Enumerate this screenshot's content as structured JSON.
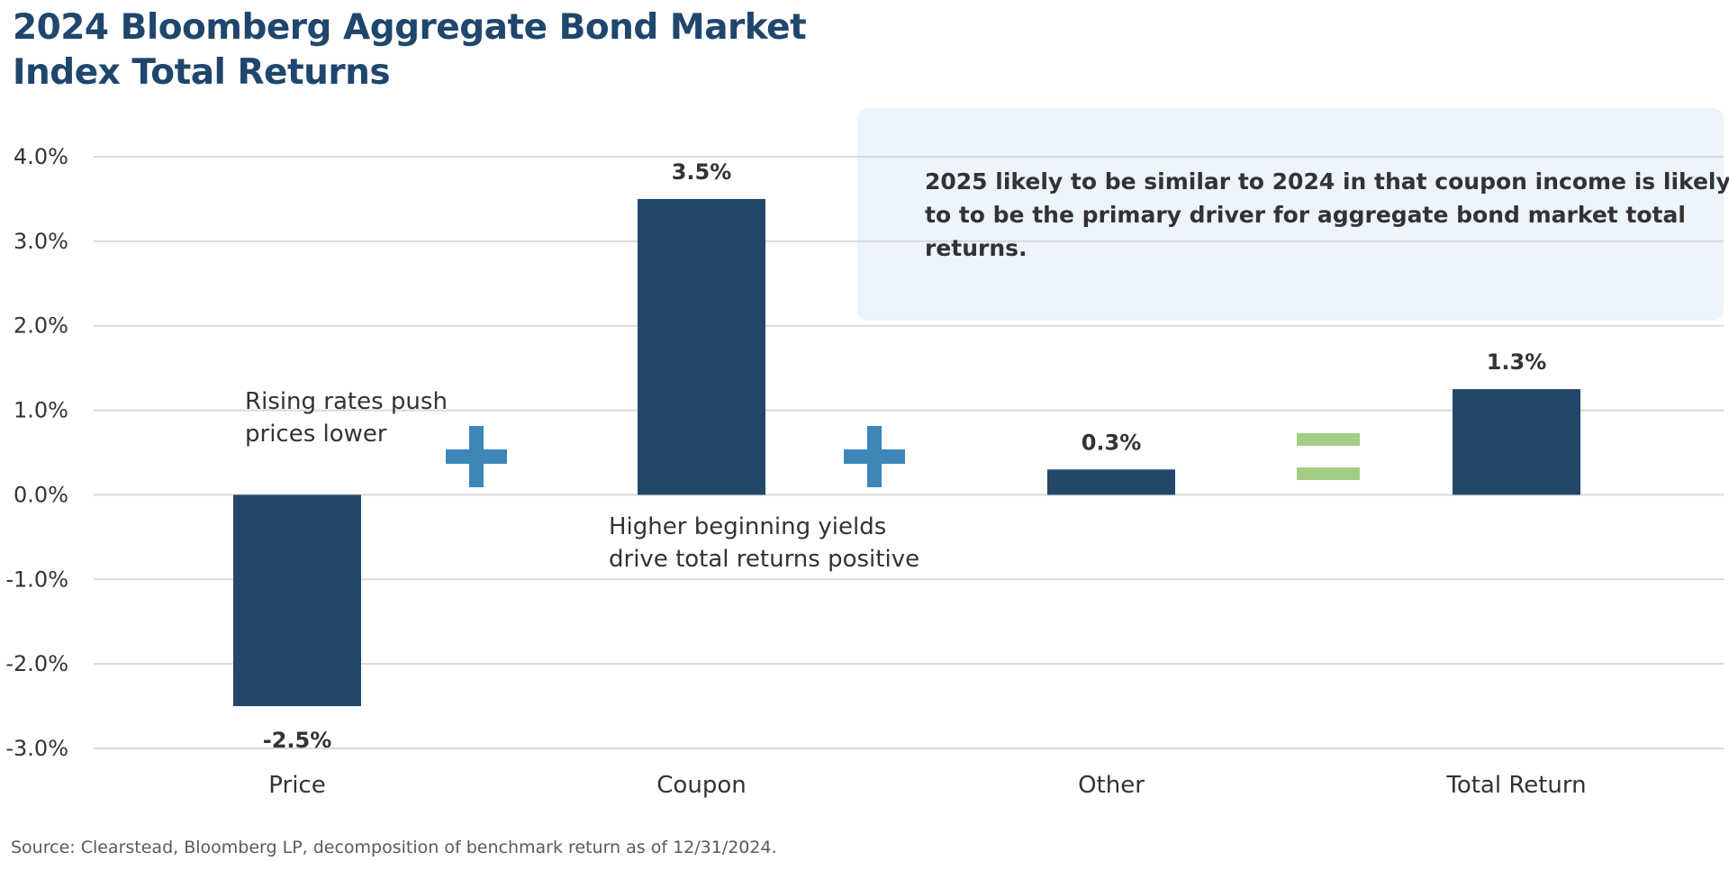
{
  "title_lines": [
    "2024 Bloomberg Aggregate Bond Market",
    "Index Total Returns"
  ],
  "source": "Source: Clearstead, Bloomberg LP, decomposition of benchmark return as of 12/31/2024.",
  "callout": {
    "lines": [
      "2025 likely to be similar to 2024 in that coupon income is likely",
      "to to be the primary driver for aggregate bond market total",
      "returns."
    ],
    "background_color": "#edf4fb"
  },
  "annotations": {
    "price": [
      "Rising rates push",
      "prices lower"
    ],
    "coupon": [
      "Higher beginning yields",
      "drive total returns positive"
    ]
  },
  "operators": [
    {
      "symbol": "plus",
      "icon": "plus-icon",
      "color": "#3c86b8"
    },
    {
      "symbol": "plus",
      "icon": "plus-icon",
      "color": "#3c86b8"
    },
    {
      "symbol": "equals",
      "icon": "equals-icon",
      "color": "#a3cd85"
    }
  ],
  "chart_data": {
    "type": "bar",
    "categories": [
      "Price",
      "Coupon",
      "Other",
      "Total Return"
    ],
    "values": [
      -2.5,
      3.5,
      0.3,
      1.25
    ],
    "data_labels": [
      "-2.5%",
      "3.5%",
      "0.3%",
      "1.3%"
    ],
    "title": "2024 Bloomberg Aggregate Bond Market Index Total Returns",
    "xlabel": "",
    "ylabel": "",
    "ylim": [
      -3.0,
      4.0
    ],
    "yticks": [
      4.0,
      3.0,
      2.0,
      1.0,
      0.0,
      -1.0,
      -2.0,
      -3.0
    ],
    "ytick_labels": [
      "4.0%",
      "3.0%",
      "2.0%",
      "1.0%",
      "0.0%",
      "-1.0%",
      "-2.0%",
      "-3.0%"
    ],
    "grid": true,
    "bar_color": "#234769",
    "grid_color": "#d9d9d9"
  }
}
